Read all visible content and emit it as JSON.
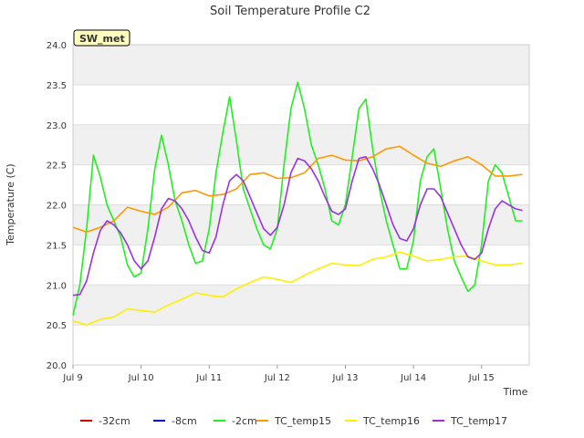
{
  "chart_data": {
    "type": "line",
    "title": "Soil Temperature Profile C2",
    "xlabel": "Time",
    "ylabel": "Temperature (C)",
    "ylim": [
      20.0,
      24.0
    ],
    "xlim": [
      9.0,
      15.7
    ],
    "yticks": [
      "20.0",
      "20.5",
      "21.0",
      "21.5",
      "22.0",
      "22.5",
      "23.0",
      "23.5",
      "24.0"
    ],
    "xticks": [
      {
        "value": 9,
        "label": "Jul 9"
      },
      {
        "value": 10,
        "label": "Jul 10"
      },
      {
        "value": 11,
        "label": "Jul 11"
      },
      {
        "value": 12,
        "label": "Jul 12"
      },
      {
        "value": 13,
        "label": "Jul 13"
      },
      {
        "value": 14,
        "label": "Jul 14"
      },
      {
        "value": 15,
        "label": "Jul 15"
      }
    ],
    "grid": true,
    "legend_position": "bottom",
    "annotation": "SW_met",
    "series": [
      {
        "name": "-32cm",
        "color": "#cc0000",
        "x": [],
        "y": []
      },
      {
        "name": "-8cm",
        "color": "#0000cc",
        "x": [],
        "y": []
      },
      {
        "name": "-2cm",
        "color": "#22ee22",
        "x": [
          9.0,
          9.1,
          9.2,
          9.3,
          9.4,
          9.5,
          9.6,
          9.7,
          9.8,
          9.9,
          10.0,
          10.1,
          10.2,
          10.3,
          10.4,
          10.5,
          10.6,
          10.7,
          10.8,
          10.9,
          11.0,
          11.1,
          11.2,
          11.3,
          11.4,
          11.5,
          11.6,
          11.7,
          11.8,
          11.9,
          12.0,
          12.1,
          12.2,
          12.3,
          12.4,
          12.5,
          12.6,
          12.7,
          12.8,
          12.9,
          13.0,
          13.1,
          13.2,
          13.3,
          13.4,
          13.5,
          13.6,
          13.7,
          13.8,
          13.9,
          14.0,
          14.1,
          14.2,
          14.3,
          14.4,
          14.5,
          14.6,
          14.7,
          14.8,
          14.9,
          15.0,
          15.1,
          15.2,
          15.3,
          15.4,
          15.5,
          15.6
        ],
        "y": [
          20.62,
          21.0,
          21.7,
          22.62,
          22.35,
          22.0,
          21.8,
          21.6,
          21.25,
          21.1,
          21.15,
          21.7,
          22.45,
          22.87,
          22.5,
          22.05,
          21.8,
          21.5,
          21.27,
          21.3,
          21.7,
          22.4,
          22.9,
          23.35,
          22.8,
          22.2,
          21.95,
          21.7,
          21.5,
          21.45,
          21.7,
          22.5,
          23.2,
          23.53,
          23.2,
          22.75,
          22.5,
          22.2,
          21.8,
          21.75,
          22.0,
          22.6,
          23.2,
          23.32,
          22.7,
          22.2,
          21.8,
          21.5,
          21.2,
          21.2,
          21.55,
          22.3,
          22.6,
          22.7,
          22.2,
          21.7,
          21.3,
          21.1,
          20.92,
          21.0,
          21.5,
          22.3,
          22.5,
          22.4,
          22.1,
          21.8,
          21.8
        ]
      },
      {
        "name": "TC_temp15",
        "color": "#ff9900",
        "x": [
          9.0,
          9.2,
          9.4,
          9.6,
          9.8,
          10.0,
          10.2,
          10.4,
          10.6,
          10.8,
          11.0,
          11.2,
          11.4,
          11.6,
          11.8,
          12.0,
          12.2,
          12.4,
          12.6,
          12.8,
          13.0,
          13.2,
          13.4,
          13.6,
          13.8,
          14.0,
          14.2,
          14.4,
          14.6,
          14.8,
          15.0,
          15.2,
          15.4,
          15.6
        ],
        "y": [
          21.72,
          21.66,
          21.72,
          21.8,
          21.97,
          21.92,
          21.88,
          21.97,
          22.15,
          22.18,
          22.11,
          22.13,
          22.2,
          22.38,
          22.4,
          22.33,
          22.34,
          22.4,
          22.58,
          22.62,
          22.56,
          22.55,
          22.6,
          22.7,
          22.73,
          22.62,
          22.52,
          22.48,
          22.55,
          22.6,
          22.5,
          22.36,
          22.36,
          22.38
        ]
      },
      {
        "name": "TC_temp16",
        "color": "#ffee00",
        "x": [
          9.0,
          9.2,
          9.4,
          9.6,
          9.8,
          10.0,
          10.2,
          10.4,
          10.6,
          10.8,
          11.0,
          11.2,
          11.4,
          11.6,
          11.8,
          12.0,
          12.2,
          12.4,
          12.6,
          12.8,
          13.0,
          13.2,
          13.4,
          13.6,
          13.8,
          14.0,
          14.2,
          14.4,
          14.6,
          14.8,
          15.0,
          15.2,
          15.4,
          15.6
        ],
        "y": [
          20.55,
          20.5,
          20.57,
          20.6,
          20.7,
          20.68,
          20.66,
          20.75,
          20.82,
          20.9,
          20.87,
          20.85,
          20.95,
          21.03,
          21.1,
          21.07,
          21.03,
          21.12,
          21.2,
          21.27,
          21.25,
          21.24,
          21.32,
          21.35,
          21.41,
          21.36,
          21.3,
          21.32,
          21.35,
          21.36,
          21.3,
          21.25,
          21.25,
          21.27
        ]
      },
      {
        "name": "TC_temp17",
        "color": "#9933dd",
        "x": [
          9.0,
          9.1,
          9.2,
          9.3,
          9.4,
          9.5,
          9.6,
          9.7,
          9.8,
          9.9,
          10.0,
          10.1,
          10.2,
          10.3,
          10.4,
          10.5,
          10.6,
          10.7,
          10.8,
          10.9,
          11.0,
          11.1,
          11.2,
          11.3,
          11.4,
          11.5,
          11.6,
          11.7,
          11.8,
          11.9,
          12.0,
          12.1,
          12.2,
          12.3,
          12.4,
          12.5,
          12.6,
          12.7,
          12.8,
          12.9,
          13.0,
          13.1,
          13.2,
          13.3,
          13.4,
          13.5,
          13.6,
          13.7,
          13.8,
          13.9,
          14.0,
          14.1,
          14.2,
          14.3,
          14.4,
          14.5,
          14.6,
          14.7,
          14.8,
          14.9,
          15.0,
          15.1,
          15.2,
          15.3,
          15.4,
          15.5,
          15.6
        ],
        "y": [
          20.87,
          20.88,
          21.05,
          21.4,
          21.68,
          21.8,
          21.75,
          21.65,
          21.5,
          21.3,
          21.2,
          21.3,
          21.6,
          21.95,
          22.08,
          22.05,
          21.95,
          21.8,
          21.6,
          21.43,
          21.4,
          21.6,
          22.0,
          22.3,
          22.38,
          22.3,
          22.1,
          21.9,
          21.7,
          21.62,
          21.72,
          22.0,
          22.4,
          22.58,
          22.55,
          22.45,
          22.3,
          22.1,
          21.92,
          21.88,
          21.95,
          22.3,
          22.58,
          22.6,
          22.45,
          22.25,
          22.0,
          21.75,
          21.58,
          21.55,
          21.7,
          22.0,
          22.2,
          22.2,
          22.1,
          21.9,
          21.7,
          21.5,
          21.35,
          21.32,
          21.4,
          21.7,
          21.95,
          22.05,
          22.0,
          21.95,
          21.93
        ]
      }
    ]
  }
}
